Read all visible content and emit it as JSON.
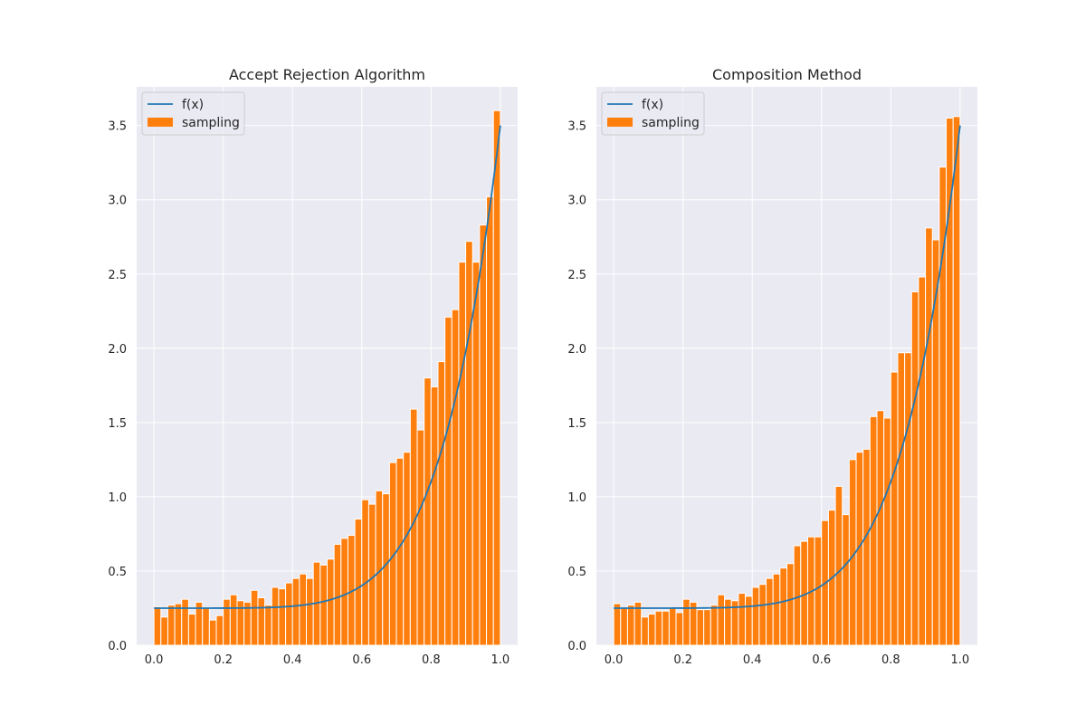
{
  "chart_data": [
    {
      "type": "bar",
      "title": "Accept Rejection Algorithm",
      "xlabel": "",
      "ylabel": "",
      "xlim": [
        -0.05,
        1.05
      ],
      "ylim": [
        0,
        3.76
      ],
      "grid": true,
      "legend_position": "top-left",
      "xticks": [
        "0.0",
        "0.2",
        "0.4",
        "0.6",
        "0.8",
        "1.0"
      ],
      "yticks": [
        "0.0",
        "0.5",
        "1.0",
        "1.5",
        "2.0",
        "2.5",
        "3.0",
        "3.5"
      ],
      "bin_start": 0.0,
      "bin_width": 0.02,
      "series": [
        {
          "name": "sampling",
          "kind": "bar",
          "color": "#ff7f0e",
          "values": [
            0.26,
            0.19,
            0.27,
            0.28,
            0.31,
            0.21,
            0.29,
            0.25,
            0.17,
            0.2,
            0.31,
            0.34,
            0.3,
            0.29,
            0.37,
            0.32,
            0.27,
            0.39,
            0.38,
            0.42,
            0.45,
            0.48,
            0.45,
            0.56,
            0.54,
            0.58,
            0.68,
            0.72,
            0.74,
            0.85,
            0.98,
            0.95,
            1.04,
            1.02,
            1.23,
            1.26,
            1.3,
            1.59,
            1.45,
            1.8,
            1.74,
            1.91,
            2.21,
            2.26,
            2.58,
            2.72,
            2.58,
            2.83,
            3.02,
            3.6
          ]
        },
        {
          "name": "f(x)",
          "kind": "line",
          "color": "#1f77b4",
          "function": "0.25 + 3.25*x^6"
        }
      ]
    },
    {
      "type": "bar",
      "title": "Composition Method",
      "xlabel": "",
      "ylabel": "",
      "xlim": [
        -0.05,
        1.05
      ],
      "ylim": [
        0,
        3.76
      ],
      "grid": true,
      "legend_position": "top-left",
      "xticks": [
        "0.0",
        "0.2",
        "0.4",
        "0.6",
        "0.8",
        "1.0"
      ],
      "yticks": [
        "0.0",
        "0.5",
        "1.0",
        "1.5",
        "2.0",
        "2.5",
        "3.0",
        "3.5"
      ],
      "bin_start": 0.0,
      "bin_width": 0.02,
      "series": [
        {
          "name": "sampling",
          "kind": "bar",
          "color": "#ff7f0e",
          "values": [
            0.28,
            0.25,
            0.27,
            0.29,
            0.19,
            0.21,
            0.23,
            0.23,
            0.25,
            0.22,
            0.31,
            0.29,
            0.24,
            0.24,
            0.27,
            0.34,
            0.31,
            0.3,
            0.35,
            0.33,
            0.39,
            0.41,
            0.45,
            0.48,
            0.52,
            0.55,
            0.67,
            0.7,
            0.73,
            0.73,
            0.84,
            0.91,
            1.07,
            0.88,
            1.25,
            1.3,
            1.32,
            1.54,
            1.58,
            1.53,
            1.84,
            1.97,
            1.97,
            2.38,
            2.48,
            2.81,
            2.73,
            3.22,
            3.55,
            3.56
          ]
        },
        {
          "name": "f(x)",
          "kind": "line",
          "color": "#1f77b4",
          "function": "0.25 + 3.25*x^6"
        }
      ]
    }
  ]
}
